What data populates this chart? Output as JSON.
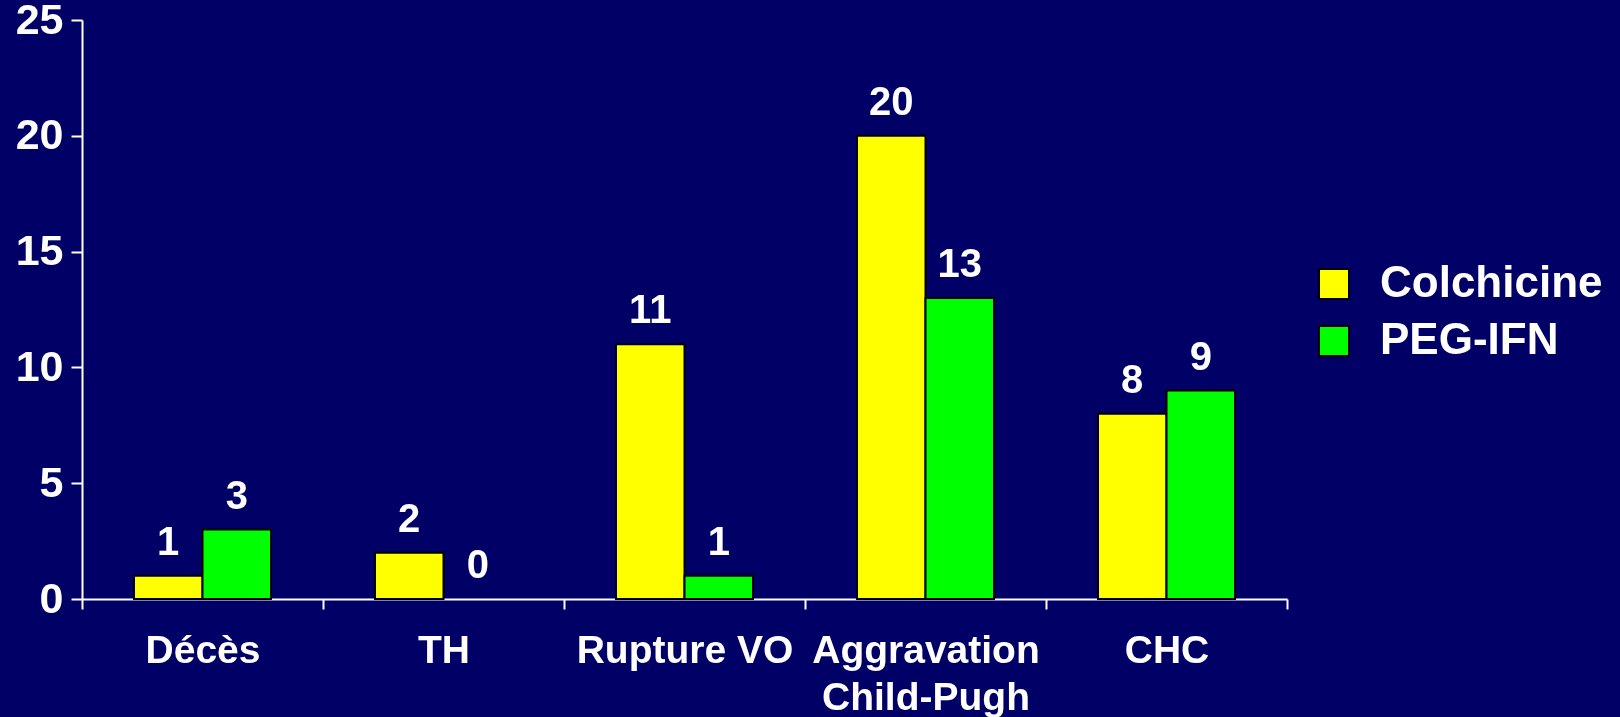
{
  "chart_data": {
    "type": "bar",
    "categories": [
      "Décès",
      "TH",
      "Rupture VO",
      "Aggravation Child-Pugh",
      "CHC"
    ],
    "series": [
      {
        "name": "Colchicine",
        "color": "#ffff00",
        "values": [
          1,
          2,
          11,
          20,
          8
        ]
      },
      {
        "name": "PEG-IFN",
        "color": "#00ff00",
        "values": [
          3,
          0,
          1,
          13,
          9
        ]
      }
    ],
    "ylim": [
      0,
      25
    ],
    "yticks": [
      0,
      5,
      10,
      15,
      20,
      25
    ],
    "grid": false,
    "legend": "right",
    "data_labels": true
  }
}
